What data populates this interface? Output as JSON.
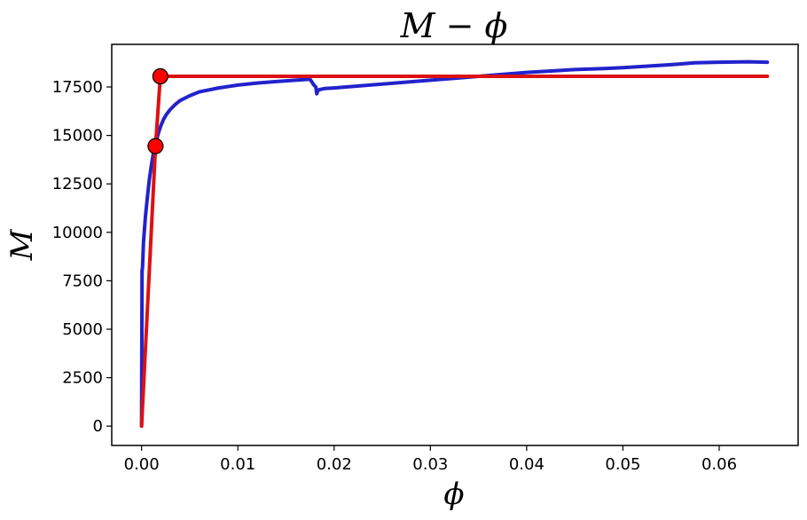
{
  "chart_data": {
    "type": "line",
    "title": "M − ϕ",
    "xlabel": "ϕ",
    "ylabel": "M",
    "xlim": [
      -0.0031,
      0.0682
    ],
    "ylim": [
      -1000,
      19700
    ],
    "xticks": [
      0.0,
      0.01,
      0.02,
      0.03,
      0.04,
      0.05,
      0.06
    ],
    "xtick_labels": [
      "0.00",
      "0.01",
      "0.02",
      "0.03",
      "0.04",
      "0.05",
      "0.06"
    ],
    "yticks": [
      0,
      2500,
      5000,
      7500,
      10000,
      12500,
      15000,
      17500
    ],
    "ytick_labels": [
      "0",
      "2500",
      "5000",
      "7500",
      "10000",
      "12500",
      "15000",
      "17500"
    ],
    "grid": false,
    "series": [
      {
        "color": "#2222cc",
        "x": [
          0.0,
          5e-05,
          0.0001,
          0.0002,
          0.0004,
          0.0006,
          0.0008,
          0.001,
          0.0012,
          0.0014,
          0.0016,
          0.0018,
          0.002,
          0.0023,
          0.0026,
          0.003,
          0.0035,
          0.004,
          0.005,
          0.006,
          0.007,
          0.008,
          0.01,
          0.012,
          0.014,
          0.016,
          0.0175,
          0.0179,
          0.0181,
          0.0182,
          0.0183,
          0.0184,
          0.0186,
          0.019,
          0.02,
          0.025,
          0.03,
          0.035,
          0.04,
          0.045,
          0.048,
          0.05,
          0.055,
          0.0575,
          0.06,
          0.063,
          0.065
        ],
        "y": [
          0,
          8000,
          8200,
          9500,
          10800,
          11800,
          12700,
          13400,
          14000,
          14450,
          14850,
          15200,
          15500,
          15850,
          16100,
          16350,
          16600,
          16800,
          17050,
          17250,
          17350,
          17450,
          17600,
          17700,
          17780,
          17850,
          17900,
          17600,
          17500,
          17150,
          17300,
          17350,
          17380,
          17420,
          17450,
          17650,
          17850,
          18050,
          18250,
          18400,
          18450,
          18500,
          18650,
          18750,
          18780,
          18800,
          18780
        ]
      },
      {
        "color": "#dd1111",
        "x": [
          0.0,
          0.00145,
          0.00195,
          0.065
        ],
        "y": [
          0,
          14450,
          18050,
          18050
        ]
      }
    ],
    "markers": [
      {
        "x": 0.00145,
        "y": 14450,
        "color": "#ff0000"
      },
      {
        "x": 0.00195,
        "y": 18050,
        "color": "#ff0000"
      }
    ]
  }
}
